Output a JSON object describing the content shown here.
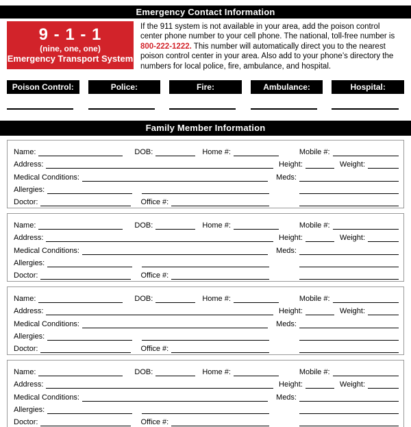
{
  "page": {
    "top_header": "Emergency Contact Information",
    "family_header": "Family Member Information"
  },
  "emergency_911": {
    "number": "9 - 1 - 1",
    "words": "(nine, one, one)",
    "system": "Emergency Transport System",
    "box_color": "#d2232a"
  },
  "poison_info": {
    "text_before": "If the 911 system is not available in your area, add the poison control center phone number to your cell phone. The national, toll-free number is ",
    "phone": "800-222-1222.",
    "text_after": " This number will automatically direct you to the nearest poison control center in your area. Also add to your phone’s directory the numbers for local police, fire, ambulance, and hospital.",
    "phone_color": "#d2232a"
  },
  "contact_labels": [
    "Poison Control:",
    "Police:",
    "Fire:",
    "Ambulance:",
    "Hospital:"
  ],
  "member_form": {
    "section_count": 4,
    "name_label": "Name:",
    "dob_label": "DOB:",
    "home_label": "Home #:",
    "mobile_label": "Mobile #:",
    "address_label": "Address:",
    "height_label": "Height:",
    "weight_label": "Weight:",
    "medical_label": "Medical Conditions:",
    "meds_label": "Meds:",
    "allergies_label": "Allergies:",
    "doctor_label": "Doctor:",
    "office_label": "Office #:"
  }
}
